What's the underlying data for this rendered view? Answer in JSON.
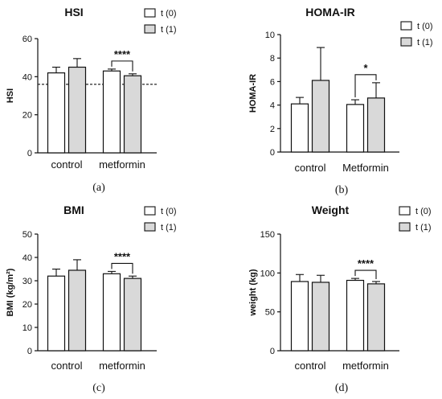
{
  "chart_data": [
    {
      "type": "bar",
      "title": "HSI",
      "ylabel": "HSI",
      "ylim": [
        0,
        60
      ],
      "yticks": [
        "0",
        "20",
        "40",
        "60"
      ],
      "categories": [
        "control",
        "metformin"
      ],
      "series": [
        {
          "name": "t (0)",
          "values": [
            42,
            43
          ],
          "errors": [
            3,
            1
          ],
          "color": "#ffffff"
        },
        {
          "name": "t (1)",
          "values": [
            45,
            40.5
          ],
          "errors": [
            4.5,
            1
          ],
          "color": "#d9d9d9"
        }
      ],
      "reference_line": 36,
      "significance": [
        {
          "category": "metformin",
          "label": "****"
        }
      ],
      "panel_label": "(a)"
    },
    {
      "type": "bar",
      "title": "HOMA-IR",
      "ylabel": "HOMA-IR",
      "ylim": [
        0,
        10
      ],
      "yticks": [
        "0",
        "2",
        "4",
        "6",
        "8",
        "10"
      ],
      "categories": [
        "control",
        "Metformin"
      ],
      "series": [
        {
          "name": "t (0)",
          "values": [
            4.1,
            4.05
          ],
          "errors": [
            0.55,
            0.4
          ],
          "color": "#ffffff"
        },
        {
          "name": "t (1)",
          "values": [
            6.1,
            4.6
          ],
          "errors": [
            2.8,
            1.3
          ],
          "color": "#d9d9d9"
        }
      ],
      "significance": [
        {
          "category": "Metformin",
          "label": "*"
        }
      ],
      "panel_label": "(b)"
    },
    {
      "type": "bar",
      "title": "BMI",
      "ylabel": "BMI (kg/m²)",
      "ylim": [
        0,
        50
      ],
      "yticks": [
        "0",
        "10",
        "20",
        "30",
        "40",
        "50"
      ],
      "categories": [
        "control",
        "metformin"
      ],
      "series": [
        {
          "name": "t (0)",
          "values": [
            32,
            33
          ],
          "errors": [
            3,
            1
          ],
          "color": "#ffffff"
        },
        {
          "name": "t (1)",
          "values": [
            34.5,
            31
          ],
          "errors": [
            4.5,
            1
          ],
          "color": "#d9d9d9"
        }
      ],
      "significance": [
        {
          "category": "metformin",
          "label": "****"
        }
      ],
      "panel_label": "(c)"
    },
    {
      "type": "bar",
      "title": "Weight",
      "ylabel": "weight (kg)",
      "ylim": [
        0,
        150
      ],
      "yticks": [
        "0",
        "50",
        "100",
        "150"
      ],
      "categories": [
        "control",
        "metformin"
      ],
      "series": [
        {
          "name": "t (0)",
          "values": [
            89,
            90.5
          ],
          "errors": [
            9,
            2.5
          ],
          "color": "#ffffff"
        },
        {
          "name": "t (1)",
          "values": [
            88,
            86
          ],
          "errors": [
            9,
            3
          ],
          "color": "#d9d9d9"
        }
      ],
      "significance": [
        {
          "category": "metformin",
          "label": "****"
        }
      ],
      "panel_label": "(d)"
    }
  ]
}
